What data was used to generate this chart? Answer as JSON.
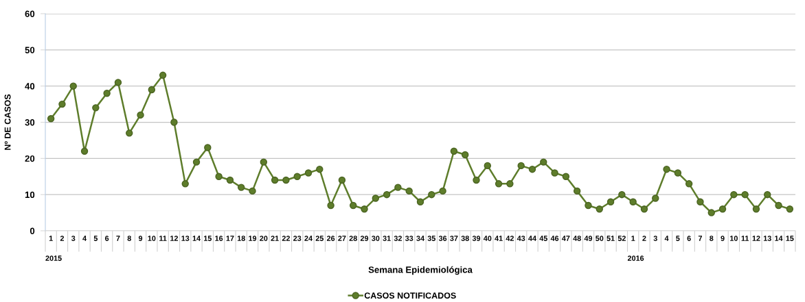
{
  "chart_data": {
    "type": "line",
    "xlabel": "Semana Epidemiológica",
    "ylabel": "Nº DE CASOS",
    "categories": [
      "1",
      "2",
      "3",
      "4",
      "5",
      "6",
      "7",
      "8",
      "9",
      "10",
      "11",
      "12",
      "13",
      "14",
      "15",
      "16",
      "17",
      "18",
      "19",
      "20",
      "21",
      "22",
      "23",
      "24",
      "25",
      "26",
      "27",
      "28",
      "29",
      "30",
      "31",
      "32",
      "33",
      "34",
      "35",
      "36",
      "37",
      "38",
      "39",
      "40",
      "41",
      "42",
      "43",
      "44",
      "45",
      "46",
      "47",
      "48",
      "49",
      "50",
      "51",
      "52",
      "1",
      "2",
      "3",
      "4",
      "5",
      "6",
      "7",
      "8",
      "9",
      "10",
      "11",
      "12",
      "13",
      "14",
      "15"
    ],
    "series": [
      {
        "name": "CASOS NOTIFICADOS",
        "color": "#5e7d2b",
        "values": [
          31,
          35,
          40,
          22,
          34,
          38,
          41,
          27,
          32,
          39,
          43,
          30,
          13,
          19,
          23,
          15,
          14,
          12,
          11,
          19,
          14,
          14,
          15,
          16,
          17,
          7,
          14,
          7,
          6,
          9,
          10,
          12,
          11,
          8,
          10,
          11,
          22,
          21,
          14,
          18,
          13,
          13,
          18,
          17,
          19,
          16,
          15,
          11,
          7,
          6,
          8,
          10,
          8,
          6,
          9,
          17,
          16,
          13,
          8,
          5,
          6,
          10,
          10,
          6,
          10,
          7,
          6
        ]
      }
    ],
    "annotations": [
      "2015",
      "2016"
    ],
    "ylim": [
      0,
      60
    ],
    "yticks": [
      0,
      10,
      20,
      30,
      40,
      50,
      60
    ],
    "grid": "y",
    "legend": "bottom",
    "marker": "circle",
    "line_style": "solid"
  }
}
